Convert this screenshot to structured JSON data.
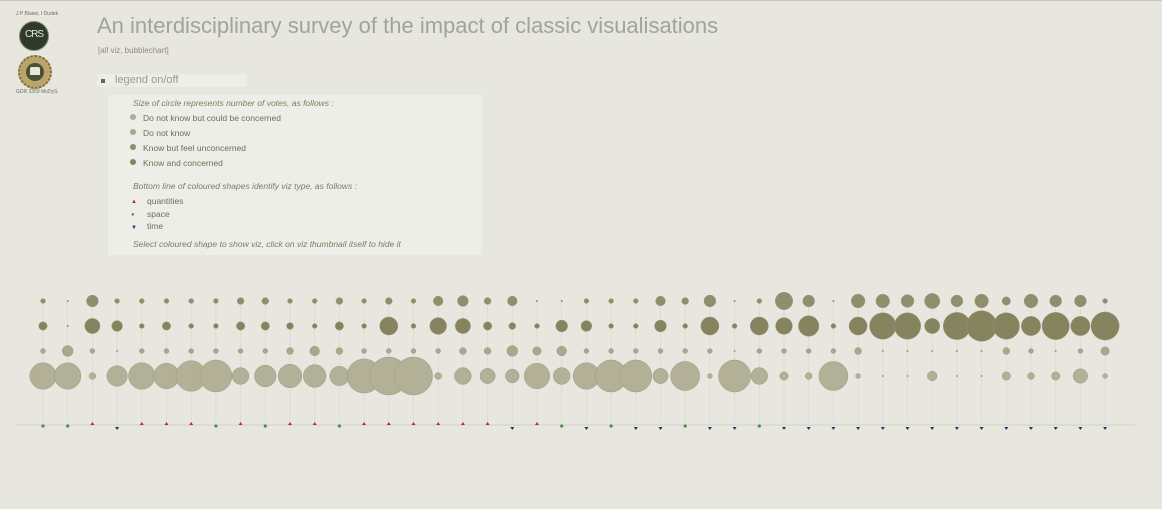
{
  "header": {
    "authors": "J P Blaise, I Dudek",
    "logo_text": "CRS",
    "grant": "GDR 3359 MoDyS",
    "title": "An interdisciplinary survey of the impact of classic visualisations",
    "subtitle": "[all viz, bubblechart]"
  },
  "legend_toggle": {
    "label": "legend on/off"
  },
  "legend": {
    "size_heading": "Size of circle represents number of votes, as follows :",
    "answers": [
      {
        "label": "Do not know but could be concerned",
        "color": "#b0ae92"
      },
      {
        "label": "Do not know",
        "color": "#a7a58a"
      },
      {
        "label": "Know but feel unconcerned",
        "color": "#8f8d6a"
      },
      {
        "label": "Know and concerned",
        "color": "#86845f"
      }
    ],
    "type_heading": "Bottom line of coloured shapes identify viz type, as follows :",
    "types": [
      {
        "label": "quantities",
        "shape": "▲",
        "color": "#c0262a"
      },
      {
        "label": "space",
        "shape": "●",
        "color": "#3a9a3a"
      },
      {
        "label": "time",
        "shape": "▼",
        "color": "#2a2f7a"
      }
    ],
    "footer": "Select coloured shape to show viz, click on viz thumbnail itself to hide it"
  },
  "chart_data": {
    "type": "bubble",
    "rows": [
      "Do not know but could be concerned",
      "Know and concerned",
      "Do not know",
      "Know but feel unconcerned"
    ],
    "row_colors": [
      "#908e6c",
      "#86845f",
      "#aaa88c",
      "#b2b096"
    ],
    "columns": [
      {
        "type": "space",
        "votes": [
          1,
          3,
          1,
          30
        ]
      },
      {
        "type": "space",
        "votes": [
          0,
          0,
          5,
          30
        ]
      },
      {
        "type": "quantities",
        "votes": [
          6,
          10,
          1,
          2
        ]
      },
      {
        "type": "time",
        "votes": [
          1,
          5,
          0,
          18
        ]
      },
      {
        "type": "quantities",
        "votes": [
          1,
          1,
          1,
          30
        ]
      },
      {
        "type": "quantities",
        "votes": [
          1,
          3,
          1,
          28
        ]
      },
      {
        "type": "quantities",
        "votes": [
          1,
          1,
          1,
          40
        ]
      },
      {
        "type": "space",
        "votes": [
          1,
          1,
          1,
          44
        ]
      },
      {
        "type": "quantities",
        "votes": [
          2,
          3,
          1,
          12
        ]
      },
      {
        "type": "space",
        "votes": [
          2,
          3,
          1,
          20
        ]
      },
      {
        "type": "quantities",
        "votes": [
          1,
          2,
          2,
          24
        ]
      },
      {
        "type": "quantities",
        "votes": [
          1,
          1,
          4,
          22
        ]
      },
      {
        "type": "space",
        "votes": [
          2,
          3,
          2,
          16
        ]
      },
      {
        "type": "quantities",
        "votes": [
          1,
          1,
          1,
          50
        ]
      },
      {
        "type": "quantities",
        "votes": [
          2,
          14,
          1,
          62
        ]
      },
      {
        "type": "quantities",
        "votes": [
          1,
          1,
          1,
          62
        ]
      },
      {
        "type": "quantities",
        "votes": [
          4,
          12,
          1,
          2
        ]
      },
      {
        "type": "quantities",
        "votes": [
          5,
          10,
          2,
          12
        ]
      },
      {
        "type": "quantities",
        "votes": [
          2,
          3,
          2,
          10
        ]
      },
      {
        "type": "time",
        "votes": [
          4,
          2,
          5,
          8
        ]
      },
      {
        "type": "quantities",
        "votes": [
          0,
          1,
          3,
          28
        ]
      },
      {
        "type": "space",
        "votes": [
          0,
          6,
          4,
          12
        ]
      },
      {
        "type": "time",
        "votes": [
          1,
          5,
          1,
          30
        ]
      },
      {
        "type": "space",
        "votes": [
          1,
          1,
          1,
          44
        ]
      },
      {
        "type": "time",
        "votes": [
          1,
          1,
          1,
          44
        ]
      },
      {
        "type": "time",
        "votes": [
          4,
          6,
          1,
          10
        ]
      },
      {
        "type": "space",
        "votes": [
          2,
          1,
          1,
          36
        ]
      },
      {
        "type": "time",
        "votes": [
          6,
          14,
          1,
          1
        ]
      },
      {
        "type": "time",
        "votes": [
          0,
          1,
          0,
          44
        ]
      },
      {
        "type": "space",
        "votes": [
          1,
          14,
          1,
          12
        ]
      },
      {
        "type": "time",
        "votes": [
          13,
          12,
          1,
          3
        ]
      },
      {
        "type": "time",
        "votes": [
          6,
          18,
          1,
          2
        ]
      },
      {
        "type": "time",
        "votes": [
          0,
          1,
          1,
          36
        ]
      },
      {
        "type": "time",
        "votes": [
          8,
          14,
          2,
          1
        ]
      },
      {
        "type": "time",
        "votes": [
          8,
          30,
          0,
          0
        ]
      },
      {
        "type": "time",
        "votes": [
          7,
          30,
          0,
          0
        ]
      },
      {
        "type": "time",
        "votes": [
          10,
          10,
          0,
          4
        ]
      },
      {
        "type": "time",
        "votes": [
          6,
          32,
          0,
          0
        ]
      },
      {
        "type": "time",
        "votes": [
          8,
          40,
          0,
          0
        ]
      },
      {
        "type": "time",
        "votes": [
          3,
          30,
          2,
          3
        ]
      },
      {
        "type": "time",
        "votes": [
          8,
          16,
          1,
          2
        ]
      },
      {
        "type": "time",
        "votes": [
          6,
          32,
          0,
          3
        ]
      },
      {
        "type": "time",
        "votes": [
          6,
          16,
          1,
          9
        ]
      },
      {
        "type": "time",
        "votes": [
          1,
          34,
          3,
          1
        ]
      }
    ]
  }
}
